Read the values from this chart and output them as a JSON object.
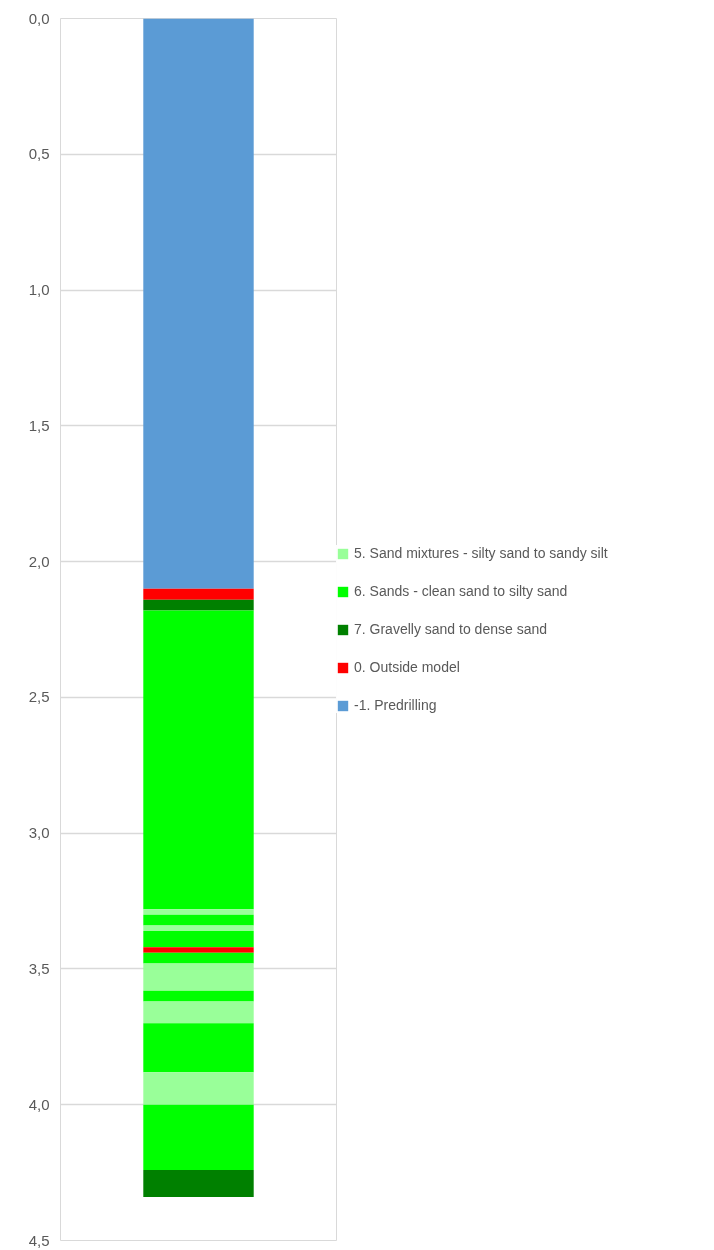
{
  "chart_data": {
    "type": "bar",
    "stacked": true,
    "categories": [
      null
    ],
    "series": [
      {
        "name": "-1. Predrilling",
        "color": "#5b9bd5",
        "values": [
          2.1
        ]
      },
      {
        "name": "0. Outside model",
        "color": "#ff0000",
        "values": [
          0.04
        ]
      },
      {
        "name": "7. Gravelly sand to dense sand",
        "color": "#008000",
        "values": [
          0.04
        ]
      },
      {
        "name": "6. Sands - clean sand to silty sand",
        "color": "#00ff00",
        "values": [
          1.1
        ]
      },
      {
        "name": "5. Sand mixtures - silty sand to sandy silt",
        "color": "#99ff99",
        "values": [
          0.02
        ]
      },
      {
        "color": "#00ff00",
        "values": [
          0.04
        ]
      },
      {
        "color": "#99ff99",
        "values": [
          0.02
        ]
      },
      {
        "color": "#00ff00",
        "values": [
          0.06
        ]
      },
      {
        "color": "#ff0000",
        "values": [
          0.02
        ]
      },
      {
        "color": "#00ff00",
        "values": [
          0.04
        ]
      },
      {
        "color": "#99ff99",
        "values": [
          0.1
        ]
      },
      {
        "color": "#00ff00",
        "values": [
          0.04
        ]
      },
      {
        "color": "#99ff99",
        "values": [
          0.08
        ]
      },
      {
        "color": "#00ff00",
        "values": [
          0.18
        ]
      },
      {
        "color": "#99ff99",
        "values": [
          0.12
        ]
      },
      {
        "color": "#00ff00",
        "values": [
          0.24
        ]
      },
      {
        "color": "#008000",
        "values": [
          0.1
        ]
      }
    ],
    "ylim": [
      4.5,
      0
    ],
    "yticks": [
      {
        "value": 0,
        "label": "0,0"
      },
      {
        "value": 0.5,
        "label": "0,5"
      },
      {
        "value": 1,
        "label": "1,0"
      },
      {
        "value": 1.5,
        "label": "1,5"
      },
      {
        "value": 2,
        "label": "2,0"
      },
      {
        "value": 2.5,
        "label": "2,5"
      },
      {
        "value": 3,
        "label": "3,0"
      },
      {
        "value": 3.5,
        "label": "3,5"
      },
      {
        "value": 4,
        "label": "4,0"
      },
      {
        "value": 4.5,
        "label": "4,5"
      }
    ],
    "grid": "y",
    "legend": "right",
    "tick_labels": "y"
  }
}
